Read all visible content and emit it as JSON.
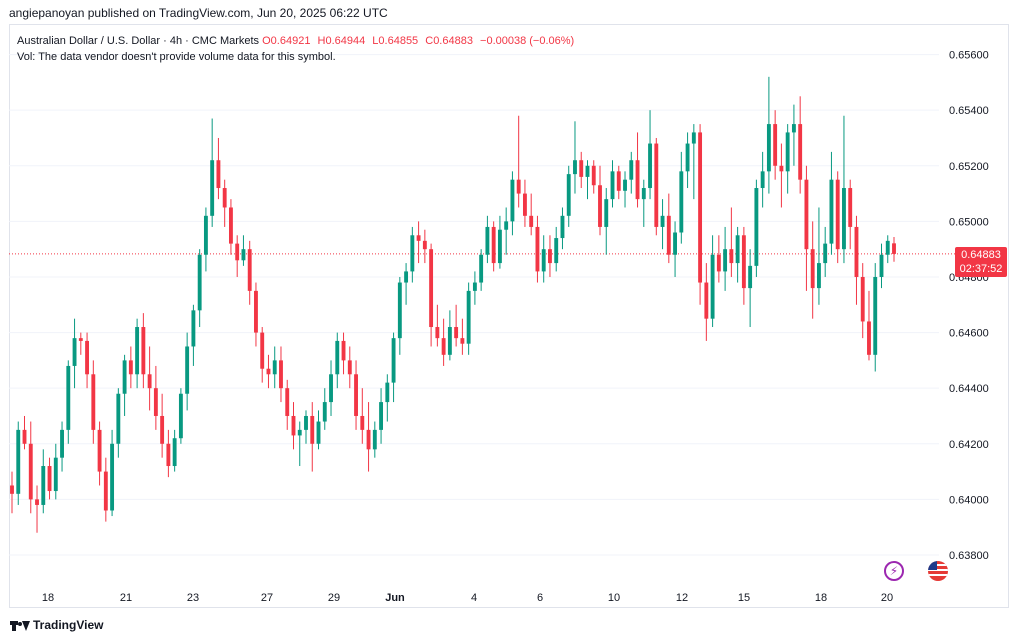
{
  "header": {
    "publisher": "angiepanoyan published on TradingView.com, Jun 20, 2025 06:22 UTC"
  },
  "legend": {
    "symbol": "Australian Dollar / U.S. Dollar · 4h · CMC Markets",
    "open": "O0.64921",
    "high": "H0.64944",
    "low": "L0.64855",
    "close": "C0.64883",
    "change": "−0.00038 (−0.06%)",
    "volume_note": "Vol: The data vendor doesn't provide volume data for this symbol."
  },
  "price_tag": {
    "price": "0.64883",
    "countdown": "02:37:52"
  },
  "footer": {
    "brand": "TradingView"
  },
  "colors": {
    "up": "#089981",
    "down": "#f23645",
    "grid": "#f0f3fa",
    "current_line": "#f23645"
  },
  "icons": {
    "event_1": "lightning-icon",
    "event_2": "us-flag-icon"
  },
  "chart_data": {
    "type": "candlestick",
    "y_ticks": [
      "0.65600",
      "0.65400",
      "0.65200",
      "0.65000",
      "0.64800",
      "0.64600",
      "0.64400",
      "0.64200",
      "0.64000",
      "0.63800"
    ],
    "x_ticks": [
      "18",
      "21",
      "23",
      "27",
      "29",
      "Jun",
      "4",
      "6",
      "10",
      "12",
      "15",
      "18",
      "20"
    ],
    "ylim": [
      0.6371,
      0.6571
    ],
    "current_price": 0.64883,
    "candles": [
      [
        0.6405,
        0.641,
        0.6395,
        0.6402
      ],
      [
        0.6402,
        0.6428,
        0.6398,
        0.6425
      ],
      [
        0.6425,
        0.643,
        0.6418,
        0.642
      ],
      [
        0.642,
        0.6428,
        0.6395,
        0.64
      ],
      [
        0.64,
        0.6405,
        0.6388,
        0.6398
      ],
      [
        0.6398,
        0.6418,
        0.6395,
        0.6412
      ],
      [
        0.6412,
        0.6415,
        0.64,
        0.6403
      ],
      [
        0.6403,
        0.642,
        0.64,
        0.6415
      ],
      [
        0.6415,
        0.6428,
        0.641,
        0.6425
      ],
      [
        0.6425,
        0.645,
        0.642,
        0.6448
      ],
      [
        0.6448,
        0.6465,
        0.644,
        0.6458
      ],
      [
        0.6458,
        0.646,
        0.6452,
        0.6457
      ],
      [
        0.6457,
        0.646,
        0.644,
        0.6445
      ],
      [
        0.6445,
        0.645,
        0.642,
        0.6425
      ],
      [
        0.6425,
        0.6428,
        0.6405,
        0.641
      ],
      [
        0.641,
        0.6415,
        0.6392,
        0.6396
      ],
      [
        0.6396,
        0.6425,
        0.6394,
        0.642
      ],
      [
        0.642,
        0.644,
        0.6415,
        0.6438
      ],
      [
        0.6438,
        0.6452,
        0.643,
        0.645
      ],
      [
        0.645,
        0.6455,
        0.644,
        0.6445
      ],
      [
        0.6445,
        0.6465,
        0.644,
        0.6462
      ],
      [
        0.6462,
        0.6467,
        0.644,
        0.6445
      ],
      [
        0.6445,
        0.6455,
        0.6432,
        0.644
      ],
      [
        0.644,
        0.6448,
        0.6425,
        0.643
      ],
      [
        0.643,
        0.6438,
        0.6415,
        0.642
      ],
      [
        0.642,
        0.6425,
        0.6408,
        0.6412
      ],
      [
        0.6412,
        0.6425,
        0.641,
        0.6422
      ],
      [
        0.6422,
        0.644,
        0.642,
        0.6438
      ],
      [
        0.6438,
        0.646,
        0.6432,
        0.6455
      ],
      [
        0.6455,
        0.647,
        0.6448,
        0.6468
      ],
      [
        0.6468,
        0.649,
        0.6462,
        0.6488
      ],
      [
        0.6488,
        0.6505,
        0.6482,
        0.6502
      ],
      [
        0.6502,
        0.6537,
        0.6498,
        0.6522
      ],
      [
        0.6522,
        0.653,
        0.6508,
        0.6512
      ],
      [
        0.6512,
        0.6515,
        0.6498,
        0.6505
      ],
      [
        0.6505,
        0.6508,
        0.6488,
        0.6492
      ],
      [
        0.6492,
        0.6495,
        0.648,
        0.6486
      ],
      [
        0.6486,
        0.6495,
        0.6484,
        0.649
      ],
      [
        0.649,
        0.6493,
        0.647,
        0.6475
      ],
      [
        0.6475,
        0.6478,
        0.6455,
        0.646
      ],
      [
        0.646,
        0.6462,
        0.6442,
        0.6447
      ],
      [
        0.6447,
        0.6452,
        0.644,
        0.6445
      ],
      [
        0.6445,
        0.6455,
        0.644,
        0.645
      ],
      [
        0.645,
        0.6455,
        0.6435,
        0.644
      ],
      [
        0.644,
        0.6443,
        0.6425,
        0.643
      ],
      [
        0.643,
        0.6435,
        0.6418,
        0.6423
      ],
      [
        0.6423,
        0.6428,
        0.6412,
        0.6425
      ],
      [
        0.6425,
        0.6432,
        0.642,
        0.643
      ],
      [
        0.643,
        0.6435,
        0.641,
        0.642
      ],
      [
        0.642,
        0.6432,
        0.6418,
        0.6428
      ],
      [
        0.6428,
        0.644,
        0.6425,
        0.6435
      ],
      [
        0.6435,
        0.645,
        0.643,
        0.6445
      ],
      [
        0.6445,
        0.646,
        0.644,
        0.6457
      ],
      [
        0.6457,
        0.646,
        0.6445,
        0.645
      ],
      [
        0.645,
        0.6455,
        0.644,
        0.6445
      ],
      [
        0.6445,
        0.645,
        0.6425,
        0.643
      ],
      [
        0.643,
        0.644,
        0.642,
        0.6425
      ],
      [
        0.6425,
        0.6435,
        0.641,
        0.6418
      ],
      [
        0.6418,
        0.6428,
        0.6415,
        0.6425
      ],
      [
        0.6425,
        0.644,
        0.642,
        0.6435
      ],
      [
        0.6435,
        0.6445,
        0.6428,
        0.6442
      ],
      [
        0.6442,
        0.646,
        0.6435,
        0.6458
      ],
      [
        0.6458,
        0.648,
        0.6452,
        0.6478
      ],
      [
        0.6478,
        0.6485,
        0.647,
        0.6482
      ],
      [
        0.6482,
        0.6498,
        0.6478,
        0.6495
      ],
      [
        0.6495,
        0.65,
        0.6485,
        0.6493
      ],
      [
        0.6493,
        0.6497,
        0.6485,
        0.649
      ],
      [
        0.649,
        0.6492,
        0.6455,
        0.6462
      ],
      [
        0.6462,
        0.647,
        0.6455,
        0.6458
      ],
      [
        0.6458,
        0.6465,
        0.6448,
        0.6452
      ],
      [
        0.6452,
        0.6468,
        0.645,
        0.6462
      ],
      [
        0.6462,
        0.647,
        0.6455,
        0.6458
      ],
      [
        0.6458,
        0.6465,
        0.6452,
        0.6456
      ],
      [
        0.6456,
        0.6478,
        0.6452,
        0.6475
      ],
      [
        0.6475,
        0.6482,
        0.647,
        0.6478
      ],
      [
        0.6478,
        0.649,
        0.6475,
        0.6488
      ],
      [
        0.6488,
        0.6502,
        0.6485,
        0.6498
      ],
      [
        0.6498,
        0.65,
        0.6482,
        0.6485
      ],
      [
        0.6485,
        0.6502,
        0.6483,
        0.6497
      ],
      [
        0.6497,
        0.6505,
        0.6488,
        0.65
      ],
      [
        0.65,
        0.6518,
        0.6495,
        0.6515
      ],
      [
        0.6515,
        0.6538,
        0.6505,
        0.651
      ],
      [
        0.651,
        0.6515,
        0.6498,
        0.6502
      ],
      [
        0.6502,
        0.651,
        0.6495,
        0.6498
      ],
      [
        0.6498,
        0.6502,
        0.6478,
        0.6482
      ],
      [
        0.6482,
        0.6495,
        0.6478,
        0.649
      ],
      [
        0.649,
        0.6495,
        0.648,
        0.6485
      ],
      [
        0.6485,
        0.6498,
        0.6482,
        0.6494
      ],
      [
        0.6494,
        0.6505,
        0.649,
        0.6502
      ],
      [
        0.6502,
        0.652,
        0.6498,
        0.6517
      ],
      [
        0.6517,
        0.6536,
        0.651,
        0.6522
      ],
      [
        0.6522,
        0.6525,
        0.6512,
        0.6516
      ],
      [
        0.6516,
        0.6522,
        0.6508,
        0.652
      ],
      [
        0.652,
        0.6522,
        0.651,
        0.6513
      ],
      [
        0.6513,
        0.652,
        0.6495,
        0.6498
      ],
      [
        0.6498,
        0.6512,
        0.6488,
        0.6508
      ],
      [
        0.6508,
        0.6522,
        0.6505,
        0.6518
      ],
      [
        0.6518,
        0.652,
        0.6508,
        0.6511
      ],
      [
        0.6511,
        0.6518,
        0.6505,
        0.6515
      ],
      [
        0.6515,
        0.6525,
        0.651,
        0.6522
      ],
      [
        0.6522,
        0.6532,
        0.6505,
        0.6508
      ],
      [
        0.6508,
        0.6515,
        0.6498,
        0.6512
      ],
      [
        0.6512,
        0.654,
        0.6508,
        0.6528
      ],
      [
        0.6528,
        0.653,
        0.6495,
        0.6498
      ],
      [
        0.6498,
        0.6508,
        0.649,
        0.6502
      ],
      [
        0.6502,
        0.651,
        0.6485,
        0.6488
      ],
      [
        0.6488,
        0.65,
        0.648,
        0.6496
      ],
      [
        0.6496,
        0.6525,
        0.6492,
        0.6518
      ],
      [
        0.6518,
        0.6532,
        0.6512,
        0.6528
      ],
      [
        0.6528,
        0.6535,
        0.6508,
        0.6532
      ],
      [
        0.6532,
        0.6535,
        0.647,
        0.6478
      ],
      [
        0.6478,
        0.6485,
        0.6457,
        0.6465
      ],
      [
        0.6465,
        0.6495,
        0.6462,
        0.6488
      ],
      [
        0.6488,
        0.6495,
        0.6478,
        0.6482
      ],
      [
        0.6482,
        0.6498,
        0.6475,
        0.649
      ],
      [
        0.649,
        0.6505,
        0.648,
        0.6485
      ],
      [
        0.6485,
        0.6498,
        0.6478,
        0.6495
      ],
      [
        0.6495,
        0.6498,
        0.647,
        0.6476
      ],
      [
        0.6476,
        0.649,
        0.6462,
        0.6484
      ],
      [
        0.6484,
        0.6515,
        0.648,
        0.6512
      ],
      [
        0.6512,
        0.6525,
        0.6505,
        0.6518
      ],
      [
        0.6518,
        0.6552,
        0.651,
        0.6535
      ],
      [
        0.6535,
        0.654,
        0.6515,
        0.652
      ],
      [
        0.652,
        0.6528,
        0.6505,
        0.6518
      ],
      [
        0.6518,
        0.6535,
        0.651,
        0.6532
      ],
      [
        0.6532,
        0.6542,
        0.652,
        0.6535
      ],
      [
        0.6535,
        0.6545,
        0.651,
        0.6515
      ],
      [
        0.6515,
        0.652,
        0.6475,
        0.649
      ],
      [
        0.649,
        0.65,
        0.6465,
        0.6476
      ],
      [
        0.6476,
        0.6505,
        0.647,
        0.6485
      ],
      [
        0.6485,
        0.6498,
        0.648,
        0.6492
      ],
      [
        0.6492,
        0.6525,
        0.6488,
        0.6515
      ],
      [
        0.6515,
        0.6518,
        0.6485,
        0.649
      ],
      [
        0.649,
        0.6538,
        0.6485,
        0.6512
      ],
      [
        0.6512,
        0.6515,
        0.649,
        0.6498
      ],
      [
        0.6498,
        0.6502,
        0.647,
        0.648
      ],
      [
        0.648,
        0.6485,
        0.6458,
        0.6464
      ],
      [
        0.6464,
        0.6475,
        0.645,
        0.6452
      ],
      [
        0.6452,
        0.6485,
        0.6446,
        0.648
      ],
      [
        0.648,
        0.6492,
        0.6476,
        0.6488
      ],
      [
        0.6488,
        0.6495,
        0.6485,
        0.6493
      ],
      [
        0.64921,
        0.64944,
        0.64855,
        0.64883
      ]
    ]
  }
}
